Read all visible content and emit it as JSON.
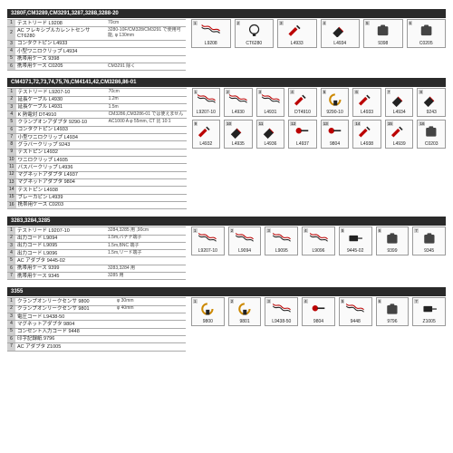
{
  "sections": [
    {
      "header": "3280F,CM3289,CM3291,3287,3288,3288-20",
      "table_name_w": 100,
      "table_desc_w": 88,
      "rows": [
        [
          "1",
          "テストリード L9208",
          "70cm"
        ],
        [
          "2",
          "AC フレキシブルカレントセンサ CT6280",
          "3280-10F/CM328/CM3291 で使用可能, φ 130mm"
        ],
        [
          "3",
          "コンタクトピン L4933",
          ""
        ],
        [
          "4",
          "小型ワニロクリップ L4934",
          ""
        ],
        [
          "5",
          "携帯用ケース 9398",
          ""
        ],
        [
          "6",
          "携帯用ケース C0205",
          "CM3291 除く"
        ]
      ],
      "thumb_cols": 6,
      "thumbs": [
        {
          "tag": "1",
          "label": "L9208",
          "icon": "lead"
        },
        {
          "tag": "2",
          "label": "CT6280",
          "icon": "loop"
        },
        {
          "tag": "3",
          "label": "L4933",
          "icon": "probe"
        },
        {
          "tag": "4",
          "label": "L4934",
          "icon": "clip"
        },
        {
          "tag": "5",
          "label": "9398",
          "icon": "case"
        },
        {
          "tag": "6",
          "label": "C0205",
          "icon": "case"
        }
      ]
    },
    {
      "header": "CM4371,72,73,74,75,76,CM4141,42,CM3286,86-01",
      "table_name_w": 100,
      "table_desc_w": 88,
      "rows": [
        [
          "1",
          "テストリード L9207-10",
          "70cm"
        ],
        [
          "2",
          "延長ケーブル L4930",
          "1.2m"
        ],
        [
          "3",
          "延長ケーブル L4931",
          "1.5m"
        ],
        [
          "4",
          "K 熱電対 DT4910",
          "CM3286,CM3286-01 では使えません"
        ],
        [
          "5",
          "クランプオンアダプタ 9290-10",
          "AC1000 A φ 55mm, CT 比 10:1"
        ],
        [
          "6",
          "コンタクトピン L4933",
          ""
        ],
        [
          "7",
          "小型ワニロクリップ L4934",
          ""
        ],
        [
          "8",
          "グラバークリップ 9243",
          ""
        ],
        [
          "9",
          "テストピン L4932",
          ""
        ],
        [
          "10",
          "ワニロクリップ L4935",
          ""
        ],
        [
          "11",
          "バスバークリップ L4936",
          ""
        ],
        [
          "12",
          "マグネットアダプタ L4937",
          ""
        ],
        [
          "13",
          "マグネットアダプタ 9804",
          ""
        ],
        [
          "14",
          "テストピン L4938",
          ""
        ],
        [
          "15",
          "ブレーカピン L4939",
          ""
        ],
        [
          "16",
          "携帯用ケース C0203",
          ""
        ]
      ],
      "thumb_cols": 8,
      "thumbs": [
        {
          "tag": "1",
          "label": "L9207-10",
          "icon": "lead"
        },
        {
          "tag": "2",
          "label": "L4930",
          "icon": "lead"
        },
        {
          "tag": "3",
          "label": "L4931",
          "icon": "lead"
        },
        {
          "tag": "4",
          "label": "DT4910",
          "icon": "probe"
        },
        {
          "tag": "5",
          "label": "9290-10",
          "icon": "clamp"
        },
        {
          "tag": "6",
          "label": "L4933",
          "icon": "probe"
        },
        {
          "tag": "7",
          "label": "L4934",
          "icon": "clip"
        },
        {
          "tag": "8",
          "label": "9243",
          "icon": "clip"
        },
        {
          "tag": "9",
          "label": "L4932",
          "icon": "probe"
        },
        {
          "tag": "10",
          "label": "L4935",
          "icon": "clip"
        },
        {
          "tag": "11",
          "label": "L4936",
          "icon": "clip"
        },
        {
          "tag": "12",
          "label": "L4937",
          "icon": "mag"
        },
        {
          "tag": "13",
          "label": "9804",
          "icon": "mag"
        },
        {
          "tag": "14",
          "label": "L4938",
          "icon": "probe"
        },
        {
          "tag": "15",
          "label": "L4939",
          "icon": "probe"
        },
        {
          "tag": "16",
          "label": "C0203",
          "icon": "case"
        }
      ]
    },
    {
      "header": "3283,3284,3285",
      "table_name_w": 100,
      "table_desc_w": 88,
      "rows": [
        [
          "1",
          "テストリード L9207-10",
          "3284,3285 用 ,90cm"
        ],
        [
          "2",
          "出力コード L9094",
          "1.5m,バナナ端子"
        ],
        [
          "3",
          "出力コード L9095",
          "1.5m,BNC 端子"
        ],
        [
          "4",
          "出力コード L9096",
          "1.5m,リード端子"
        ],
        [
          "5",
          "AC アダプタ 9445-02",
          ""
        ],
        [
          "6",
          "携帯用ケース 9399",
          "3283,3284 用"
        ],
        [
          "7",
          "携帯用ケース 9345",
          "3285 用"
        ]
      ],
      "thumb_cols": 7,
      "thumbs": [
        {
          "tag": "1",
          "label": "L9207-10",
          "icon": "lead"
        },
        {
          "tag": "2",
          "label": "L9094",
          "icon": "lead"
        },
        {
          "tag": "3",
          "label": "L9095",
          "icon": "lead"
        },
        {
          "tag": "4",
          "label": "L9096",
          "icon": "lead"
        },
        {
          "tag": "5",
          "label": "9445-02",
          "icon": "adapter"
        },
        {
          "tag": "6",
          "label": "9399",
          "icon": "case"
        },
        {
          "tag": "7",
          "label": "9345",
          "icon": "case"
        }
      ]
    },
    {
      "header": "3355",
      "table_name_w": 110,
      "table_desc_w": 78,
      "rows": [
        [
          "1",
          "クランプオンリークセンサ 9800",
          "φ 30mm"
        ],
        [
          "2",
          "クランプオンリークセンサ 9801",
          "φ 40mm"
        ],
        [
          "3",
          "電圧コード L9438-50",
          ""
        ],
        [
          "4",
          "マグネットアダプタ 9804",
          ""
        ],
        [
          "5",
          "コンセント入力コード 9448",
          ""
        ],
        [
          "6",
          "印字記録紙 9796",
          ""
        ],
        [
          "7",
          "AC アダプタ Z1005",
          ""
        ]
      ],
      "thumb_cols": 7,
      "thumbs": [
        {
          "tag": "1",
          "label": "9800",
          "icon": "clamp"
        },
        {
          "tag": "2",
          "label": "9801",
          "icon": "clamp"
        },
        {
          "tag": "3",
          "label": "L9438-50",
          "icon": "lead"
        },
        {
          "tag": "4",
          "label": "9804",
          "icon": "mag"
        },
        {
          "tag": "5",
          "label": "9448",
          "icon": "lead"
        },
        {
          "tag": "6",
          "label": "9796",
          "icon": "case"
        },
        {
          "tag": "7",
          "label": "Z1005",
          "icon": "adapter"
        }
      ]
    }
  ],
  "icons": {
    "lead": "<path d='M2 3 C6 8,10 2,14 7 C18 12,22 6,26 11' stroke='#b00' stroke-width='1.3' fill='none'/><path d='M2 6 C6 11,10 5,14 10 C18 15,22 9,26 14' stroke='#222' stroke-width='1.3' fill='none'/>",
    "loop": "<circle cx='14' cy='9' r='6' stroke='#222' stroke-width='1.5' fill='none'/><rect x='12' y='14' width='4' height='4' fill='#222'/>",
    "probe": "<path d='M3 15 L12 6 L15 9 L6 18 Z' fill='#b00'/><path d='M14 4 L18 8' stroke='#222' stroke-width='2'/>",
    "clip": "<path d='M4 14 L12 6 L18 12 L10 20 Z' fill='#222'/><path d='M12 6 L18 12' stroke='#b00' stroke-width='1'/>",
    "case": "<rect x='7' y='5' width='14' height='12' rx='1.5' fill='#444'/><rect x='11' y='3' width='6' height='3' rx='1' fill='#444'/>",
    "clamp": "<path d='M14 3 A7 7 0 1 0 21 10' stroke='#c80' stroke-width='2.5' fill='none'/><rect x='12' y='11' width='5' height='7' fill='#222'/>",
    "mag": "<circle cx='9' cy='9' r='4' fill='#b00'/><rect x='12' y='8' width='10' height='2' fill='#222'/>",
    "adapter": "<rect x='6' y='6' width='12' height='8' rx='1' fill='#222'/><path d='M18 10 L24 10' stroke='#222' stroke-width='1.5'/>"
  }
}
